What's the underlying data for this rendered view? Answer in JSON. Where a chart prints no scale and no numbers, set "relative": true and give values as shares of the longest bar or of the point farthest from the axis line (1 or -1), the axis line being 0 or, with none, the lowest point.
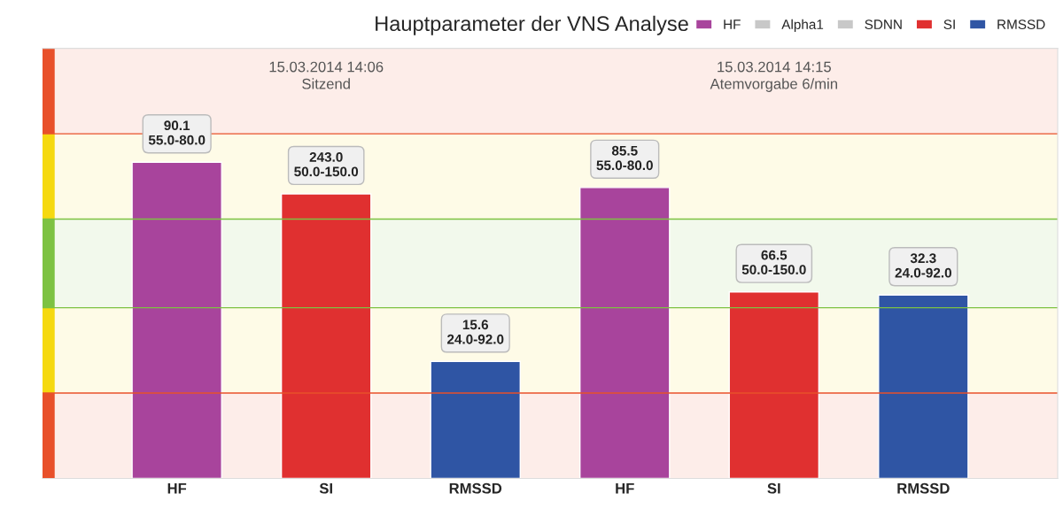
{
  "chart_data": {
    "type": "bar",
    "title": "Hauptparameter der VNS Analyse",
    "relative": true,
    "legend": "top right",
    "grid": false,
    "categories": [
      "HF",
      "SI",
      "RMSSD",
      "HF",
      "SI",
      "RMSSD"
    ],
    "series": [
      {
        "name": "HF",
        "color": "#a8449c",
        "values": [
          1,
          null,
          null,
          0.92,
          null,
          null
        ]
      },
      {
        "name": "Alpha1",
        "color": "#c8c8c8",
        "values": [
          null,
          null,
          null,
          null,
          null,
          null
        ]
      },
      {
        "name": "SDNN",
        "color": "#c8c8c8",
        "values": [
          null,
          null,
          null,
          null,
          null,
          null
        ]
      },
      {
        "name": "SI",
        "color": "#e03030",
        "values": [
          null,
          0.9,
          null,
          null,
          0.59,
          null
        ]
      },
      {
        "name": "RMSSD",
        "color": "#2f55a4",
        "values": [
          null,
          null,
          0.37,
          null,
          null,
          0.58
        ]
      }
    ],
    "bands": [
      {
        "axis": "y",
        "from": 0,
        "to": 0.27,
        "color": "#e8502a"
      },
      {
        "axis": "y",
        "from": 0.27,
        "to": 0.54,
        "color": "#f5d90f"
      },
      {
        "axis": "y",
        "from": 0.54,
        "to": 0.82,
        "color": "#7dc242"
      },
      {
        "axis": "y",
        "from": 0.82,
        "to": 1.09,
        "color": "#f5d90f"
      },
      {
        "axis": "y",
        "from": 1.09,
        "to": 1.36,
        "color": "#e8502a"
      }
    ],
    "ref_lines": [
      {
        "axis": "y",
        "value": 0.27,
        "color": "#e8502a"
      },
      {
        "axis": "y",
        "value": 0.54,
        "color": "#7dc242"
      },
      {
        "axis": "y",
        "value": 0.82,
        "color": "#7dc242"
      },
      {
        "axis": "y",
        "value": 1.09,
        "color": "#e8502a"
      }
    ],
    "annotations": [
      "15.03.2014 14:06\nSitzend",
      "15.03.2014 14:15\nAtemvorgabe 6/min",
      {
        "text": "90.1\n55.0-80.0",
        "x": "HF",
        "y": 1
      },
      {
        "text": "243.0\n50.0-150.0",
        "x": "SI",
        "y": 0.9
      },
      {
        "text": "15.6\n24.0-92.0",
        "x": "RMSSD",
        "y": 0.37
      },
      "85.5\n55.0-80.0",
      "66.5\n50.0-150.0",
      "32.3\n24.0-92.0"
    ]
  }
}
